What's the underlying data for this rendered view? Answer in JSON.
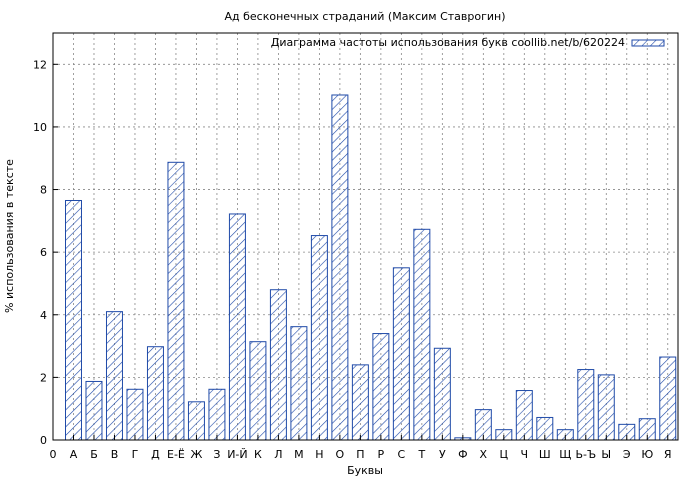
{
  "chart_data": {
    "type": "bar",
    "title": "Ад бесконечных страданий (Максим Ставрогин)",
    "xlabel": "Буквы",
    "ylabel": "% использования в тексте",
    "legend": "Диаграмма частоты использования букв coollib.net/b/620224",
    "legend_position": "top-right",
    "grid": true,
    "ylim": [
      0,
      13
    ],
    "yticks": [
      0,
      2,
      4,
      6,
      8,
      10,
      12
    ],
    "x_start_label": "0",
    "categories": [
      "А",
      "Б",
      "В",
      "Г",
      "Д",
      "Е-Ё",
      "Ж",
      "З",
      "И-Й",
      "К",
      "Л",
      "М",
      "Н",
      "О",
      "П",
      "Р",
      "С",
      "Т",
      "У",
      "Ф",
      "Х",
      "Ц",
      "Ч",
      "Ш",
      "Щ",
      "Ь-Ъ",
      "Ы",
      "Э",
      "Ю",
      "Я"
    ],
    "values": [
      7.65,
      1.87,
      4.1,
      1.62,
      2.98,
      8.87,
      1.22,
      1.62,
      7.22,
      3.14,
      4.8,
      3.62,
      6.53,
      11.02,
      2.4,
      3.4,
      5.5,
      6.73,
      2.93,
      0.07,
      0.97,
      0.33,
      1.58,
      0.72,
      0.33,
      2.25,
      2.08,
      0.5,
      0.68,
      2.65
    ]
  },
  "colors": {
    "bar_stroke": "#1f4aa8",
    "hatch": "#1f4aa8",
    "grid": "#888888",
    "axis": "#000000"
  }
}
